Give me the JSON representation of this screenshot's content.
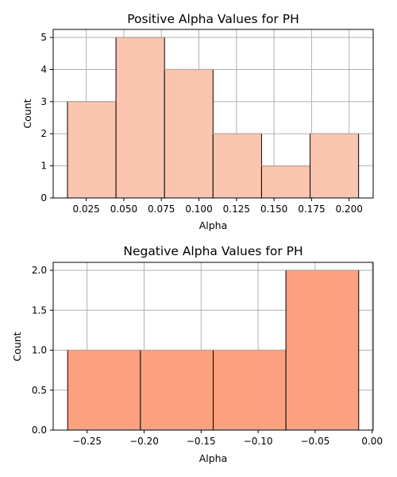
{
  "chart_data": [
    {
      "type": "bar",
      "subtype": "histogram",
      "title": "Positive Alpha Values for PH",
      "xlabel": "Alpha",
      "ylabel": "Count",
      "bin_edges": [
        0.0125,
        0.0448,
        0.0771,
        0.1094,
        0.1417,
        0.174,
        0.2063
      ],
      "values": [
        3,
        5,
        4,
        2,
        1,
        2
      ],
      "xlim": [
        0.003,
        0.216
      ],
      "ylim": [
        0,
        5.25
      ],
      "xticks": [
        0.025,
        0.05,
        0.075,
        0.1,
        0.125,
        0.15,
        0.175,
        0.2
      ],
      "xtick_labels": [
        "0.025",
        "0.050",
        "0.075",
        "0.100",
        "0.125",
        "0.150",
        "0.175",
        "0.200"
      ],
      "yticks": [
        0,
        1,
        2,
        3,
        4,
        5
      ],
      "ytick_labels": [
        "0",
        "1",
        "2",
        "3",
        "4",
        "5"
      ],
      "bar_color": "#fcc5b0",
      "edge_color": "#000000",
      "grid": true
    },
    {
      "type": "bar",
      "subtype": "histogram",
      "title": "Negative Alpha Values for PH",
      "xlabel": "Alpha",
      "ylabel": "Count",
      "bin_edges": [
        -0.267,
        -0.2032,
        -0.1394,
        -0.0756,
        -0.0118
      ],
      "values": [
        1,
        1,
        1,
        2
      ],
      "xlim": [
        -0.2797,
        0.0009
      ],
      "ylim": [
        0,
        2.1
      ],
      "xticks": [
        -0.25,
        -0.2,
        -0.15,
        -0.1,
        -0.05,
        0.0
      ],
      "xtick_labels": [
        "−0.25",
        "−0.20",
        "−0.15",
        "−0.10",
        "−0.05",
        "0.00"
      ],
      "yticks": [
        0,
        0.5,
        1,
        1.5,
        2
      ],
      "ytick_labels": [
        "0.0",
        "0.5",
        "1.0",
        "1.5",
        "2.0"
      ],
      "bar_color": "#fca17f",
      "edge_color": "#000000",
      "grid": true
    }
  ]
}
